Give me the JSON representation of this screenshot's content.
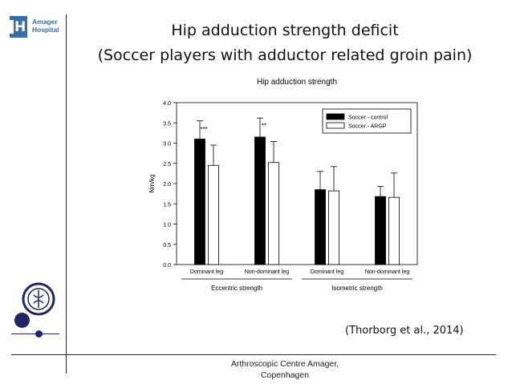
{
  "logo": {
    "initial": "H",
    "line1": "Amager",
    "line2": "Hospital"
  },
  "slide": {
    "title_line1": "Hip adduction strength deficit",
    "title_line2": "(Soccer players with adductor related groin pain)",
    "citation": "(Thorborg et al., 2014)",
    "footer_line1": "Arthroscopic Centre Amager,",
    "footer_line2": "Copenhagen"
  },
  "chart_data": {
    "type": "bar",
    "title": "Hip adduction strength",
    "ylabel": "Nm/kg",
    "ylim": [
      0,
      4.0
    ],
    "yticks": [
      "0.0",
      "0.5",
      "1.0",
      "1.5",
      "2.0",
      "2.5",
      "3.0",
      "3.5",
      "4.0"
    ],
    "categories": [
      "Dominant leg",
      "Non-dominant leg",
      "Dominant leg",
      "Non-dominant leg"
    ],
    "groups": [
      {
        "label": "Eccentric strength",
        "span": [
          0,
          1
        ]
      },
      {
        "label": "Isometric strength",
        "span": [
          2,
          3
        ]
      }
    ],
    "series": [
      {
        "name": "Soccer - control",
        "color": "#000000",
        "values": [
          3.1,
          3.15,
          1.85,
          1.68
        ],
        "errors": [
          0.45,
          0.47,
          0.45,
          0.25
        ]
      },
      {
        "name": "Soccer - ARGP",
        "color": "#ffffff",
        "values": [
          2.45,
          2.52,
          1.82,
          1.66
        ],
        "errors": [
          0.5,
          0.52,
          0.6,
          0.6
        ]
      }
    ],
    "annotations": [
      {
        "category_index": 0,
        "text": "***"
      },
      {
        "category_index": 1,
        "text": "**"
      }
    ],
    "legend_position": "top-right",
    "grid": false
  }
}
